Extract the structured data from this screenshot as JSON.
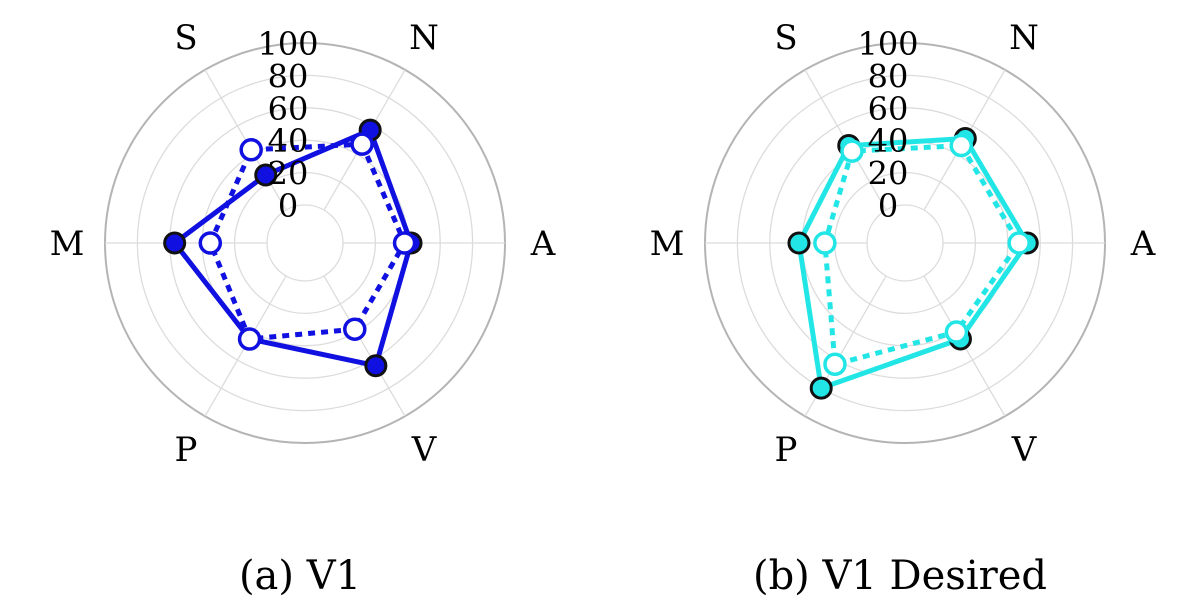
{
  "chart_data": [
    {
      "type": "radar",
      "caption": "(a) V1",
      "axes": [
        "N",
        "A",
        "V",
        "P",
        "M",
        "S"
      ],
      "radial_ticks": [
        0,
        20,
        40,
        60,
        80,
        100
      ],
      "rlim": [
        0,
        100
      ],
      "grid": true,
      "color": "#1010e0",
      "series": [
        {
          "style": "solid-filled-markers",
          "values": [
            57,
            42,
            64,
            45,
            57,
            25
          ]
        },
        {
          "style": "dotted-open-markers",
          "values": [
            47,
            38,
            38,
            45,
            35,
            43
          ]
        }
      ]
    },
    {
      "type": "radar",
      "caption": "(b) V1 Desired",
      "axes": [
        "N",
        "A",
        "V",
        "P",
        "M",
        "S"
      ],
      "radial_ticks": [
        0,
        20,
        40,
        60,
        80,
        100
      ],
      "rlim": [
        0,
        100
      ],
      "grid": true,
      "color": "#22e6e6",
      "series": [
        {
          "style": "solid-filled-markers",
          "values": [
            51,
            52,
            45,
            80,
            42,
            46
          ]
        },
        {
          "style": "dotted-open-markers",
          "values": [
            46,
            47,
            40,
            63,
            26,
            42
          ]
        }
      ]
    }
  ]
}
